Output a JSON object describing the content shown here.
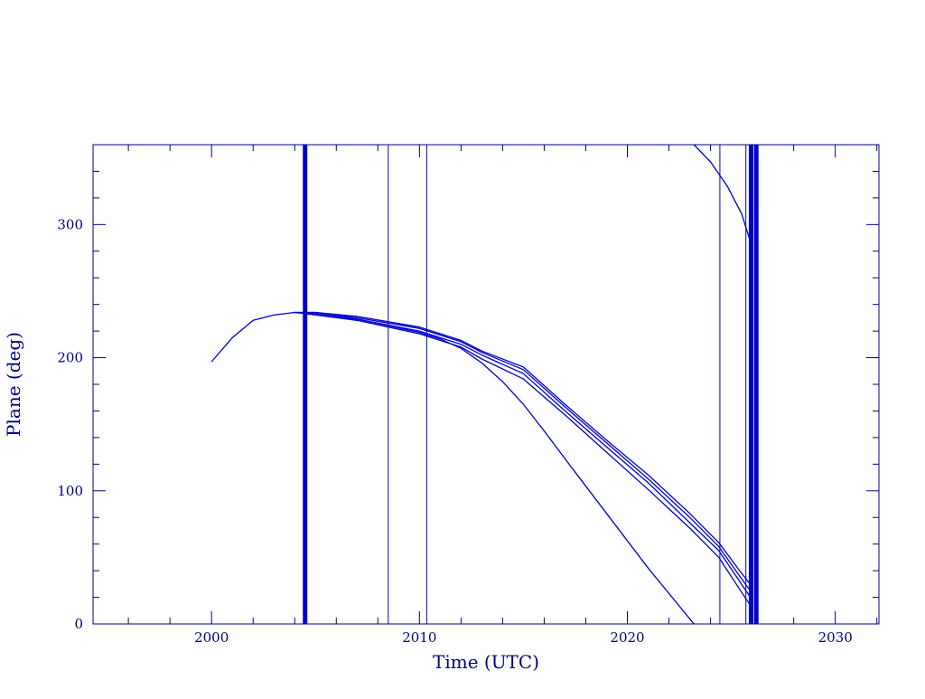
{
  "chart_data": {
    "type": "line",
    "title": "",
    "xlabel": "Time (UTC)",
    "ylabel": "Plane (deg)",
    "xlim": [
      1994.3,
      2032.1
    ],
    "ylim": [
      0,
      360
    ],
    "x_ticks": [
      2000,
      2010,
      2020,
      2030
    ],
    "x_tick_labels": [
      "2000",
      "2010",
      "2020",
      "2030"
    ],
    "y_ticks": [
      0,
      100,
      200,
      300
    ],
    "y_tick_labels": [
      "0",
      "100",
      "200",
      "300"
    ],
    "x_minor_step": 2,
    "y_minor_step": 20,
    "grid": false,
    "legend": "none",
    "color": "#0000cc",
    "vertical_markers": [
      {
        "x": 2004.5,
        "weight": "heavy"
      },
      {
        "x": 2008.5,
        "weight": "thin"
      },
      {
        "x": 2010.35,
        "weight": "thin"
      },
      {
        "x": 2024.45,
        "weight": "thin"
      },
      {
        "x": 2025.7,
        "weight": "thin"
      },
      {
        "x": 2025.95,
        "weight": "heavy"
      },
      {
        "x": 2026.2,
        "weight": "heavy"
      }
    ],
    "series": [
      {
        "x": [
          2000.0,
          2001.0,
          2002.0,
          2003.0,
          2004.0,
          2005.0,
          2007.0,
          2010.0,
          2012.0,
          2013.0,
          2015.0,
          2017.0,
          2019.0,
          2021.0,
          2023.0,
          2024.4,
          2025.4,
          2026.0
        ],
        "y": [
          197,
          215,
          228,
          232,
          234,
          234,
          231,
          223,
          213,
          205,
          193,
          165,
          138,
          112,
          83,
          61,
          40,
          28
        ]
      },
      {
        "x": [
          2004.0,
          2005.0,
          2007.0,
          2010.0,
          2012.0,
          2013.0,
          2015.0,
          2017.0,
          2019.0,
          2021.0,
          2023.0,
          2024.4,
          2025.4,
          2026.0
        ],
        "y": [
          234,
          234,
          230,
          222,
          212,
          204,
          191,
          163,
          136,
          109,
          80,
          58,
          36,
          23
        ]
      },
      {
        "x": [
          2004.0,
          2005.0,
          2007.0,
          2010.0,
          2012.0,
          2013.0,
          2015.0,
          2017.0,
          2019.0,
          2021.0,
          2023.0,
          2024.4,
          2025.4,
          2026.0
        ],
        "y": [
          234,
          233,
          229,
          220,
          210,
          202,
          188,
          160,
          133,
          106,
          76,
          55,
          32,
          18
        ]
      },
      {
        "x": [
          2004.0,
          2005.0,
          2007.0,
          2010.0,
          2012.0,
          2013.0,
          2015.0,
          2017.0,
          2019.0,
          2021.0,
          2023.0,
          2024.4,
          2025.4,
          2026.0
        ],
        "y": [
          234,
          232,
          228,
          218,
          208,
          199,
          184,
          157,
          129,
          101,
          72,
          50,
          26,
          12
        ]
      },
      {
        "x": [
          2004.0,
          2005.0,
          2007.0,
          2010.0,
          2011.0,
          2012.0,
          2013.0,
          2014.0,
          2015.0,
          2016.0,
          2017.0,
          2019.0,
          2021.0,
          2023.2
        ],
        "y": [
          234,
          233,
          229,
          219,
          214,
          207,
          196,
          182,
          165,
          145,
          124,
          83,
          42,
          0
        ]
      },
      {
        "x": [
          2023.2,
          2024.0,
          2024.8,
          2025.5,
          2026.0
        ],
        "y": [
          360,
          347,
          329,
          308,
          283
        ]
      }
    ]
  }
}
